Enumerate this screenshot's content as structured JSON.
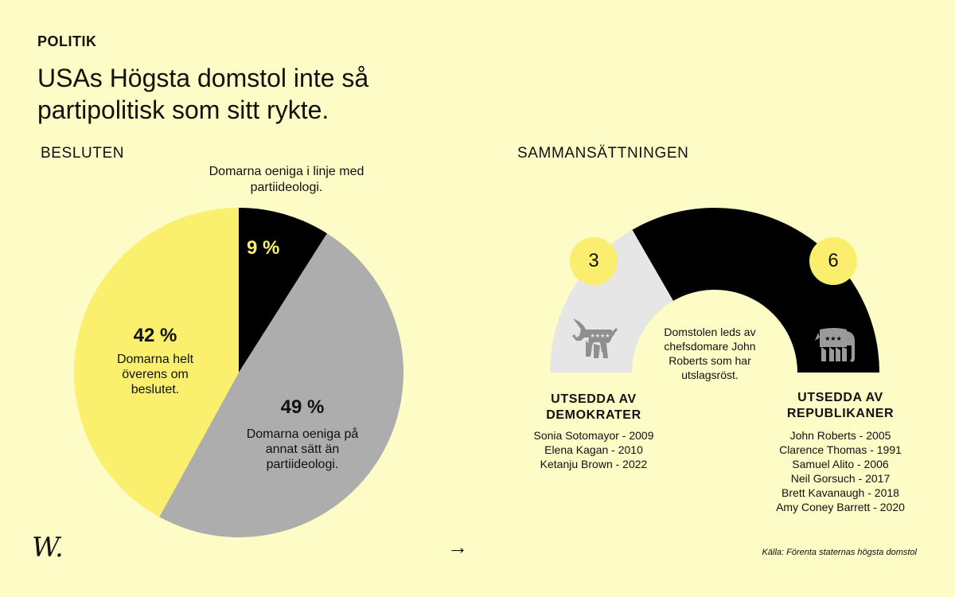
{
  "header": {
    "kicker": "POLITIK",
    "title": "USAs Högsta domstol inte så partipolitisk som sitt rykte."
  },
  "sections": {
    "left": "BESLUTEN",
    "right": "SAMMANSÄTTNINGEN"
  },
  "colors": {
    "background": "#fdfbc6",
    "yellow": "#fbef6e",
    "black": "#000000",
    "gray": "#adadad",
    "light_gray": "#e6e6e6",
    "badge": "#fbee6e"
  },
  "chart_data": [
    {
      "type": "pie",
      "slices": [
        {
          "label": "9 %",
          "value": 9,
          "description": "Domarna oeniga i linje med partiideologi.",
          "color": "#000000"
        },
        {
          "label": "49 %",
          "value": 49,
          "description": "Domarna oeniga på annat sätt än partiideologi.",
          "color": "#adadad"
        },
        {
          "label": "42 %",
          "value": 42,
          "description": "Domarna helt överens om beslutet.",
          "color": "#fbef6e"
        }
      ]
    },
    {
      "type": "semicircle-arc",
      "groups": [
        {
          "count": 3,
          "count_label": "3",
          "title": "UTSEDDA AV DEMOKRATER",
          "icon": "donkey-icon",
          "color": "#e6e6e6",
          "members": [
            "Sonia Sotomayor - 2009",
            "Elena Kagan - 2010",
            "Ketanju Brown - 2022"
          ]
        },
        {
          "count": 6,
          "count_label": "6",
          "title": "UTSEDDA AV REPUBLIKANER",
          "icon": "elephant-icon",
          "color": "#000000",
          "members": [
            "John Roberts - 2005",
            "Clarence Thomas - 1991",
            "Samuel Alito - 2006",
            "Neil Gorsuch - 2017",
            "Brett Kavanaugh - 2018",
            "Amy Coney Barrett - 2020"
          ]
        }
      ],
      "note": "Domstolen leds av chefsdomare John Roberts som har utslagsröst."
    }
  ],
  "footer": {
    "source": "Källa: Förenta staternas högsta domstol",
    "arrow": "→",
    "logo": "W."
  }
}
